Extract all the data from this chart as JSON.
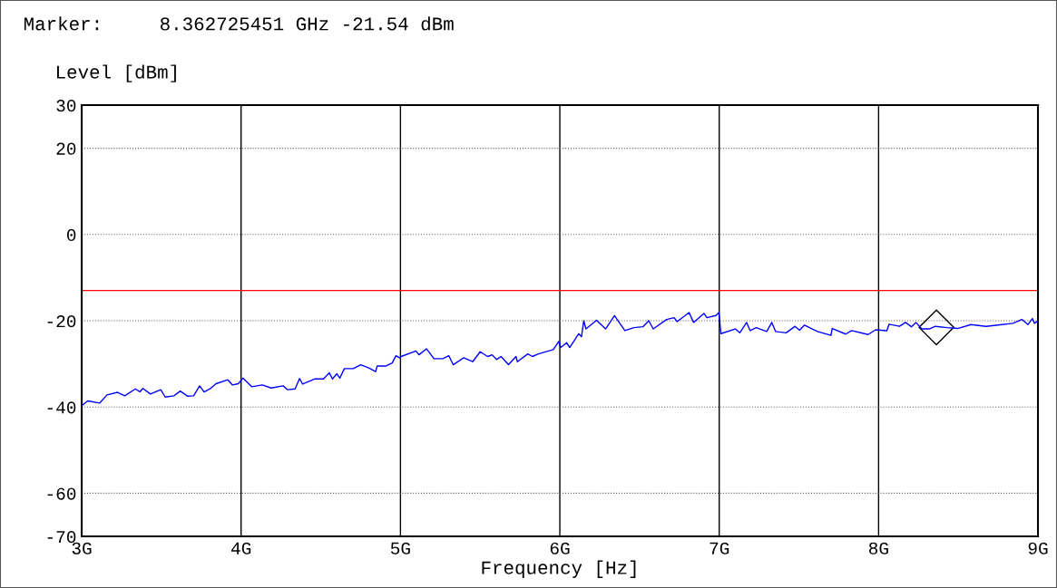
{
  "chart_data": {
    "type": "line",
    "title": "Marker:     8.362725451 GHz -21.54 dBm",
    "ylabel": "Level [dBm]",
    "xlabel": "Frequency [Hz]",
    "xlim": [
      3,
      9
    ],
    "xticks": [
      {
        "value": 3,
        "label": "3G"
      },
      {
        "value": 4,
        "label": "4G"
      },
      {
        "value": 5,
        "label": "5G"
      },
      {
        "value": 6,
        "label": "6G"
      },
      {
        "value": 7,
        "label": "7G"
      },
      {
        "value": 8,
        "label": "8G"
      },
      {
        "value": 9,
        "label": "9G"
      }
    ],
    "ylim": [
      -70,
      30
    ],
    "yticks": [
      30,
      20,
      0,
      -20,
      -40,
      -60,
      -70
    ],
    "grid": true,
    "ref_lines": [
      {
        "axis": "y",
        "value": -13,
        "color": "#ff0000"
      }
    ],
    "series": [
      {
        "color": "#0000ff",
        "marker": "none",
        "x": [
          3.0,
          3.038,
          3.112,
          3.159,
          3.225,
          3.27,
          3.337,
          3.365,
          3.384,
          3.431,
          3.496,
          3.524,
          3.58,
          3.618,
          3.665,
          3.702,
          3.74,
          3.768,
          3.805,
          3.843,
          3.917,
          3.946,
          3.983,
          4.011,
          4.067,
          4.133,
          4.189,
          4.264,
          4.292,
          4.339,
          4.367,
          4.386,
          4.461,
          4.517,
          4.554,
          4.573,
          4.601,
          4.62,
          4.648,
          4.704,
          4.751,
          4.798,
          4.844,
          4.854,
          4.91,
          4.948,
          4.972,
          4.994,
          5.004,
          5.097,
          5.116,
          5.163,
          5.21,
          5.266,
          5.303,
          5.331,
          5.397,
          5.453,
          5.5,
          5.547,
          5.575,
          5.603,
          5.631,
          5.678,
          5.725,
          5.734,
          5.799,
          5.828,
          5.865,
          5.959,
          5.993,
          6.006,
          6.043,
          6.062,
          6.118,
          6.136,
          6.15,
          6.164,
          6.23,
          6.287,
          6.343,
          6.408,
          6.465,
          6.521,
          6.558,
          6.586,
          6.67,
          6.717,
          6.736,
          6.811,
          6.839,
          6.904,
          6.923,
          6.979,
          6.998,
          7.011,
          7.101,
          7.129,
          7.172,
          7.194,
          7.232,
          7.298,
          7.33,
          7.354,
          7.42,
          7.476,
          7.504,
          7.535,
          7.616,
          7.701,
          7.709,
          7.794,
          7.831,
          7.934,
          7.981,
          8.052,
          8.066,
          8.131,
          8.169,
          8.206,
          8.234,
          8.271,
          8.318,
          8.356,
          8.431,
          8.496,
          8.58,
          8.674,
          8.749,
          8.843,
          8.899,
          8.937,
          8.965,
          8.978,
          9.0
        ],
        "values": [
          -39.7,
          -38.6,
          -39.1,
          -37.2,
          -36.6,
          -37.4,
          -35.8,
          -36.5,
          -35.7,
          -37.0,
          -36.0,
          -37.7,
          -37.4,
          -36.3,
          -37.5,
          -37.4,
          -35.1,
          -36.5,
          -35.8,
          -34.6,
          -33.7,
          -34.9,
          -34.6,
          -33.3,
          -35.3,
          -34.9,
          -35.6,
          -35.1,
          -36.0,
          -35.8,
          -33.4,
          -34.7,
          -33.5,
          -33.5,
          -32.1,
          -33.5,
          -32.3,
          -33.3,
          -31.1,
          -31.1,
          -30.2,
          -30.9,
          -31.8,
          -30.5,
          -30.5,
          -29.8,
          -28.1,
          -28.6,
          -28.3,
          -27.0,
          -27.9,
          -26.5,
          -28.8,
          -28.8,
          -28.1,
          -30.2,
          -28.6,
          -29.5,
          -27.2,
          -28.3,
          -27.9,
          -29.0,
          -28.3,
          -30.2,
          -28.3,
          -29.5,
          -27.7,
          -28.3,
          -27.7,
          -26.7,
          -24.8,
          -26.2,
          -25.1,
          -26.2,
          -23.0,
          -23.7,
          -20.0,
          -21.9,
          -19.9,
          -21.9,
          -18.8,
          -22.3,
          -21.6,
          -21.4,
          -20.0,
          -21.9,
          -19.7,
          -19.3,
          -20.2,
          -18.1,
          -20.4,
          -18.3,
          -19.3,
          -18.8,
          -18.1,
          -23.0,
          -21.9,
          -22.8,
          -20.4,
          -22.3,
          -21.6,
          -22.5,
          -20.4,
          -22.5,
          -22.8,
          -21.3,
          -22.2,
          -21.0,
          -22.5,
          -23.4,
          -21.8,
          -23.1,
          -22.3,
          -23.2,
          -22.1,
          -22.3,
          -20.8,
          -21.3,
          -20.4,
          -21.4,
          -20.4,
          -21.9,
          -21.9,
          -21.3,
          -21.6,
          -21.8,
          -20.9,
          -21.3,
          -21.0,
          -20.6,
          -19.7,
          -20.9,
          -19.5,
          -20.6,
          -20.0
        ]
      },
      {
        "type": "scatter",
        "color": "#000000",
        "marker": "diamond",
        "x": [
          8.362725451
        ],
        "values": [
          -21.54
        ]
      }
    ]
  }
}
